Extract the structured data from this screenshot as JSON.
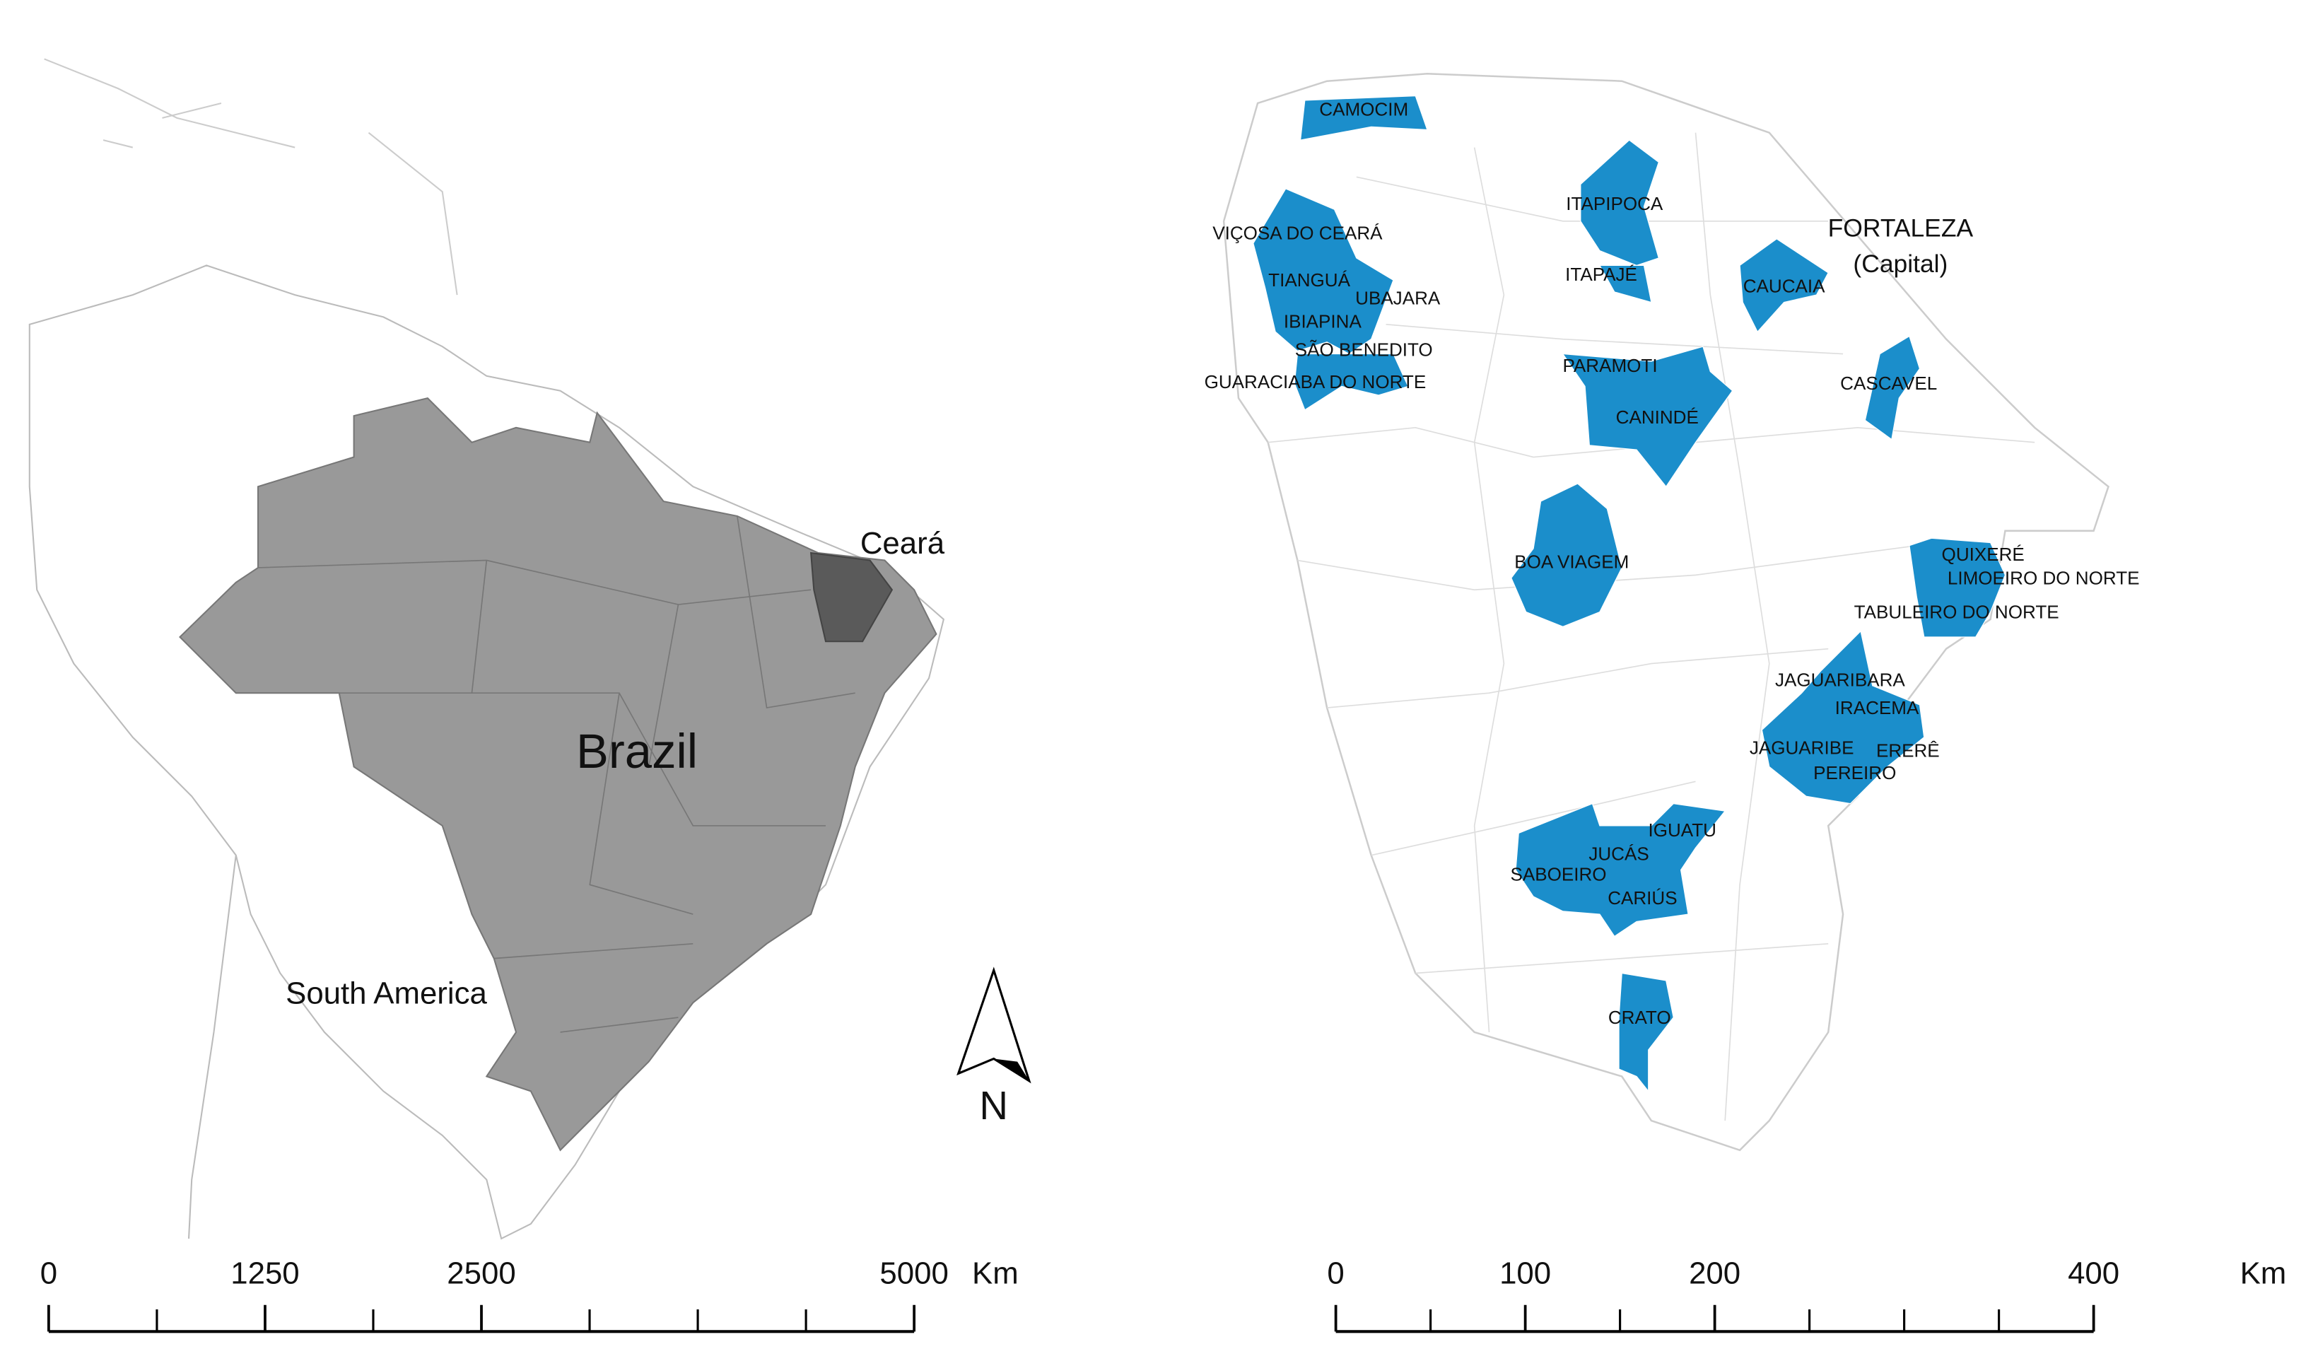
{
  "left_map": {
    "labels": {
      "region": "Ceará",
      "country": "Brazil",
      "continent": "South America",
      "north": "N"
    },
    "scale": {
      "ticks": [
        0,
        1250,
        2500,
        5000
      ],
      "unit": "Km"
    }
  },
  "right_map": {
    "capital": {
      "name": "FORTALEZA",
      "note": "(Capital)"
    },
    "municipalities": [
      "CAMOCIM",
      "VIÇOSA DO CEARÁ",
      "TIANGUÁ",
      "UBAJARA",
      "IBIAPINA",
      "SÃO BENEDITO",
      "GUARACIABA DO NORTE",
      "ITAPIPOCA",
      "ITAPAJÉ",
      "CAUCAIA",
      "PARAMOTI",
      "CANINDÉ",
      "CASCAVEL",
      "BOA VIAGEM",
      "QUIXERÉ",
      "LIMOEIRO DO NORTE",
      "TABULEIRO DO NORTE",
      "JAGUARIBARA",
      "IRACEMA",
      "JAGUARIBE",
      "ERERÊ",
      "PEREIRO",
      "IGUATU",
      "JUCÁS",
      "SABOEIRO",
      "CARIÚS",
      "CRATO"
    ],
    "scale": {
      "ticks": [
        0,
        100,
        200,
        400
      ],
      "unit": "Km"
    }
  }
}
